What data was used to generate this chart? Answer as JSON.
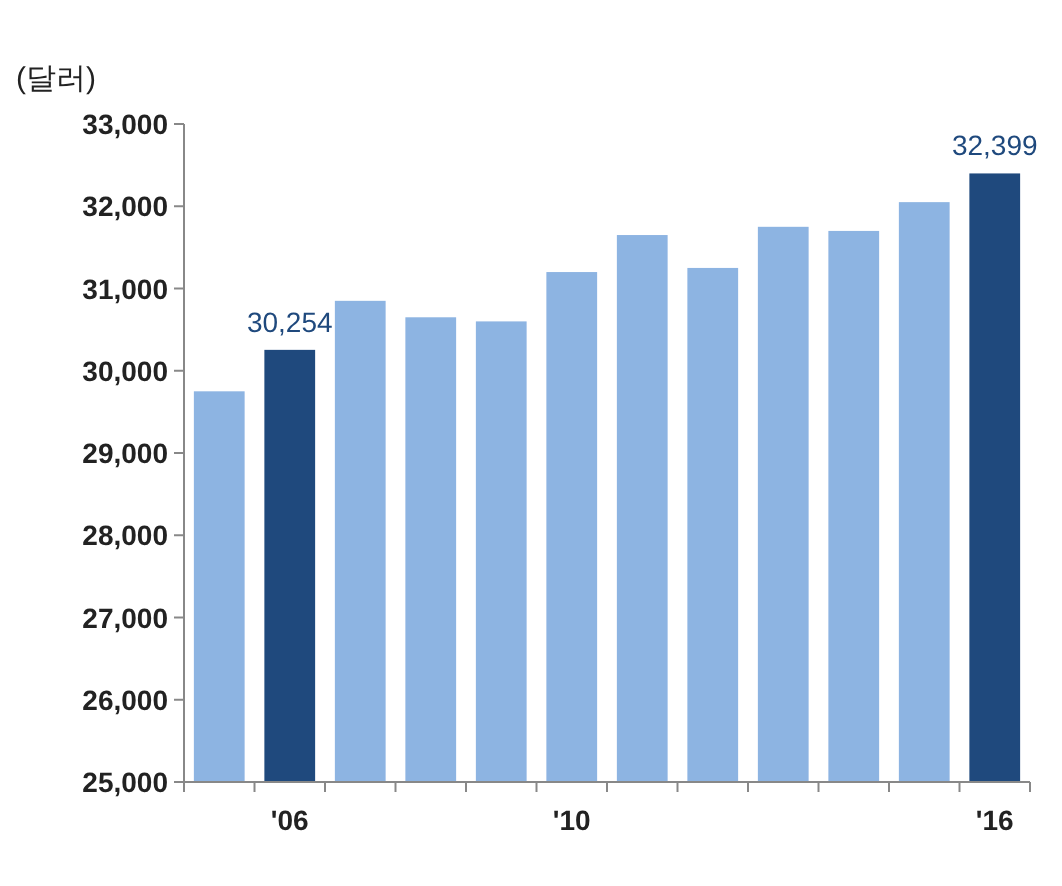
{
  "chart_data": {
    "type": "bar",
    "ylabel": "(달러)",
    "categories": [
      null,
      "'06",
      null,
      null,
      null,
      "'10",
      null,
      null,
      null,
      null,
      null,
      "'16"
    ],
    "values": [
      29750,
      30254,
      30850,
      30650,
      30600,
      31200,
      31650,
      31250,
      31750,
      31700,
      32050,
      32399
    ],
    "colors": [
      "#8db4e2",
      "#1f497d",
      "#8db4e2",
      "#8db4e2",
      "#8db4e2",
      "#8db4e2",
      "#8db4e2",
      "#8db4e2",
      "#8db4e2",
      "#8db4e2",
      "#8db4e2",
      "#1f497d"
    ],
    "value_labels": [
      null,
      "30,254",
      null,
      null,
      null,
      null,
      null,
      null,
      null,
      null,
      null,
      "32,399"
    ],
    "ylim": [
      25000,
      33000
    ],
    "yticks": [
      {
        "value": 25000,
        "label": "25,000"
      },
      {
        "value": 26000,
        "label": "26,000"
      },
      {
        "value": 27000,
        "label": "27,000"
      },
      {
        "value": 28000,
        "label": "28,000"
      },
      {
        "value": 29000,
        "label": "29,000"
      },
      {
        "value": 30000,
        "label": "30,000"
      },
      {
        "value": 31000,
        "label": "31,000"
      },
      {
        "value": 32000,
        "label": "32,000"
      },
      {
        "value": 33000,
        "label": "33,000"
      }
    ],
    "grid": false
  }
}
